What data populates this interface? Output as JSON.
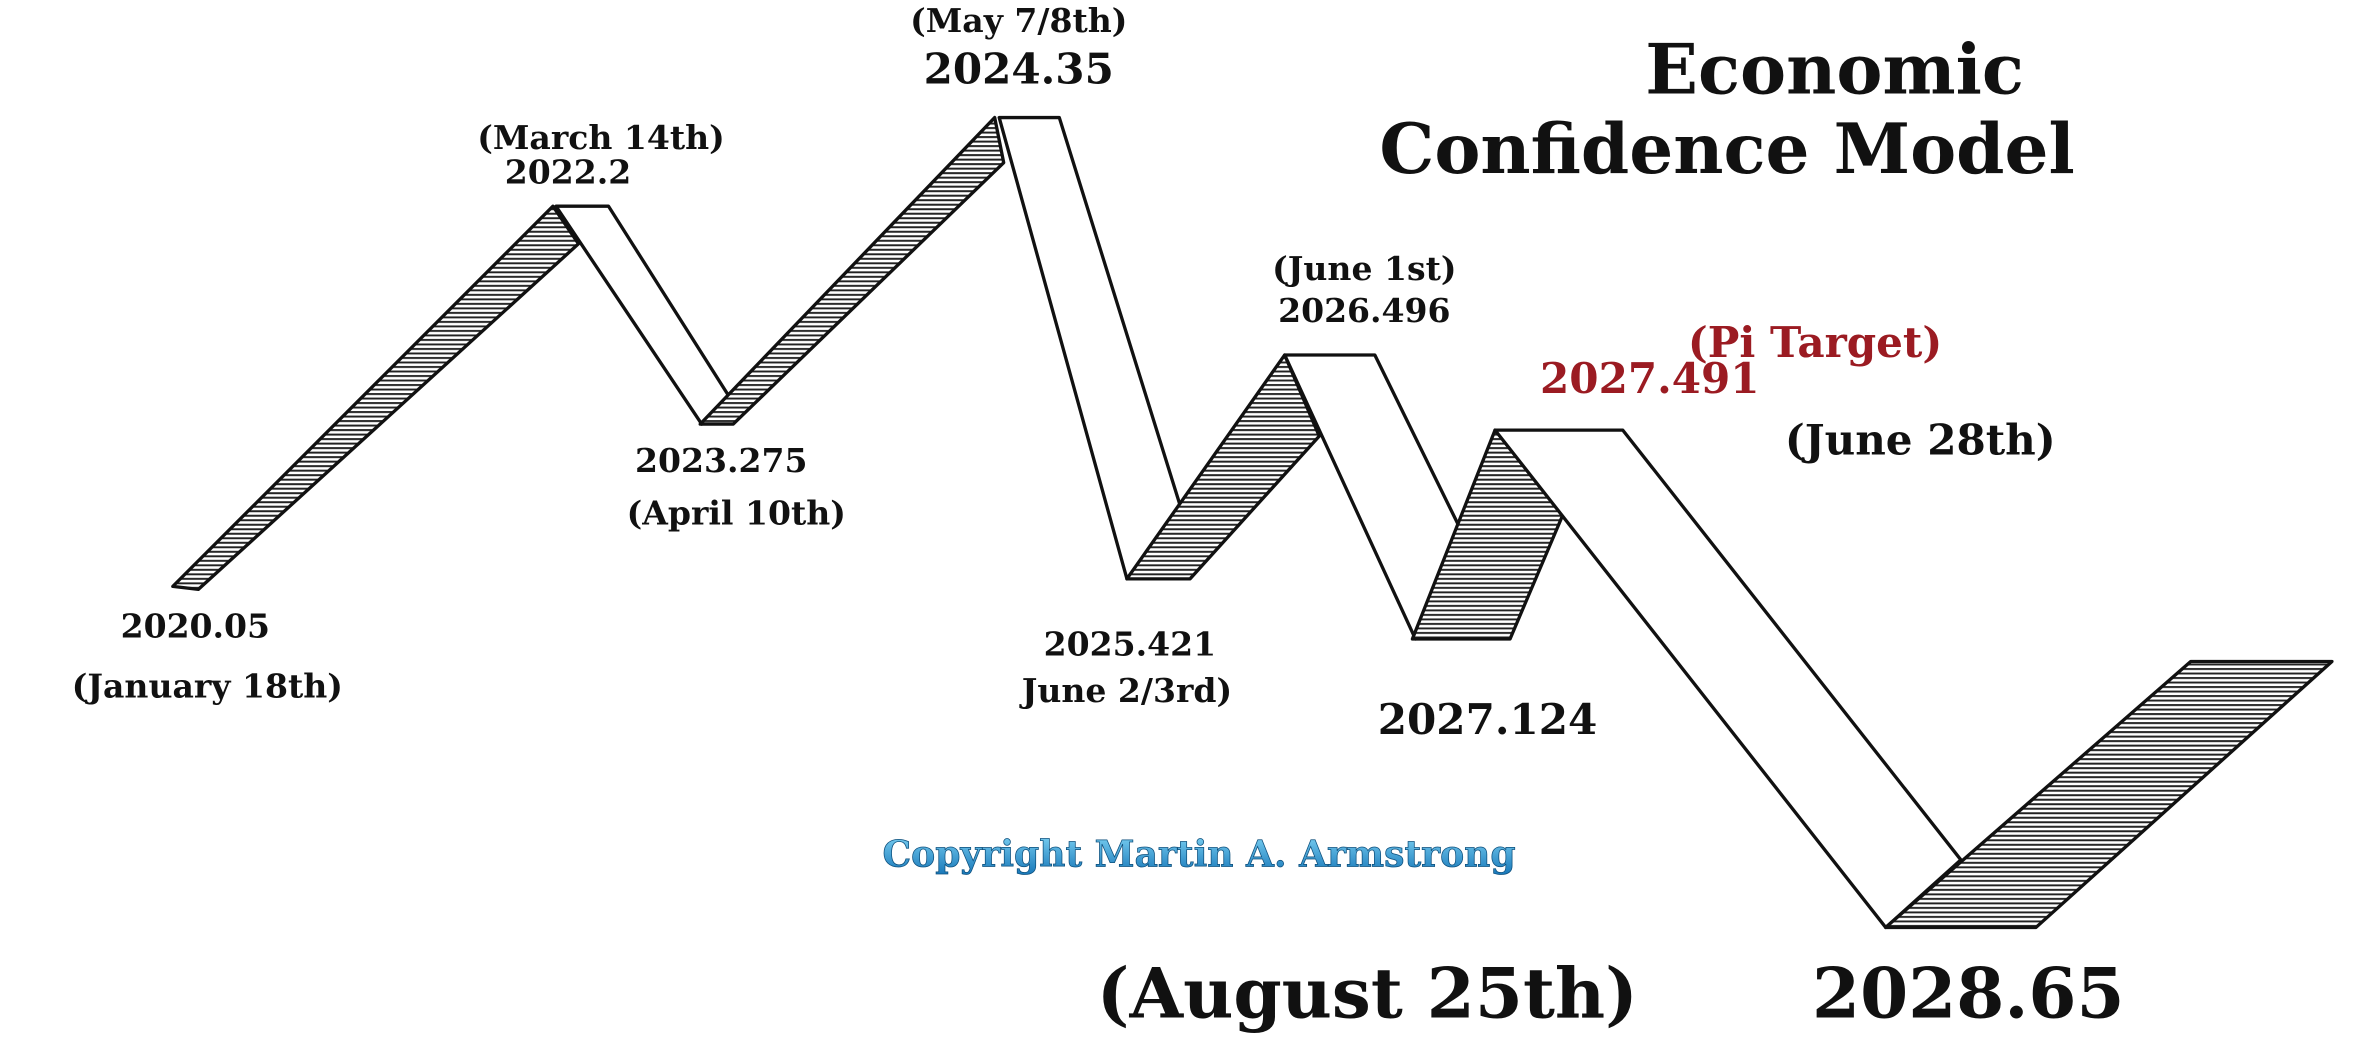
{
  "title": {
    "line1": "Economic",
    "line2": "Confidence Model"
  },
  "turning_points": [
    {
      "value": "2020.05",
      "date": "(January 18th)"
    },
    {
      "date": "(March 14th)",
      "value": "2022.2"
    },
    {
      "value": "2023.275",
      "date": "(April 10th)"
    },
    {
      "date": "(May 7/8th)",
      "value": "2024.35"
    },
    {
      "value": "2025.421",
      "date": "June 2/3rd)"
    },
    {
      "date": "(June 1st)",
      "value": "2026.496"
    },
    {
      "value": "2027.124"
    },
    {
      "label": "(Pi Target)",
      "value": "2027.491",
      "date": "(June 28th)"
    },
    {
      "date": "(August 25th)",
      "value": "2028.65"
    }
  ],
  "copyright": "Copyright Martin A. Armstrong"
}
